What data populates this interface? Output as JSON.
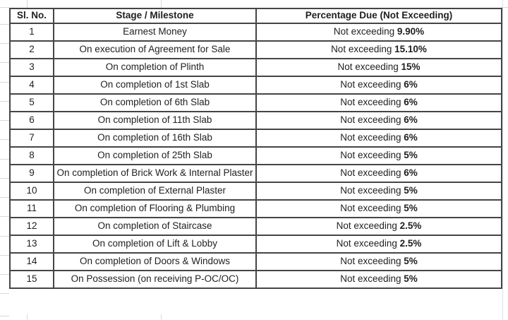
{
  "table": {
    "headers": {
      "serial": "Sl. No.",
      "stage": "Stage / Milestone",
      "percentage": "Percentage Due (Not Exceeding)"
    },
    "prefix_label": "Not exceeding ",
    "rows": [
      {
        "no": "1",
        "stage": "Earnest Money",
        "pct": "9.90%"
      },
      {
        "no": "2",
        "stage": "On execution of Agreement for Sale",
        "pct": "15.10%"
      },
      {
        "no": "3",
        "stage": "On completion of Plinth",
        "pct": "15%"
      },
      {
        "no": "4",
        "stage": "On completion of 1st Slab",
        "pct": "6%"
      },
      {
        "no": "5",
        "stage": "On completion of 6th Slab",
        "pct": "6%"
      },
      {
        "no": "6",
        "stage": "On completion of 11th Slab",
        "pct": "6%"
      },
      {
        "no": "7",
        "stage": "On completion of 16th Slab",
        "pct": "6%"
      },
      {
        "no": "8",
        "stage": "On completion of 25th Slab",
        "pct": "5%"
      },
      {
        "no": "9",
        "stage": "On completion of Brick Work & Internal Plaster",
        "pct": "6%"
      },
      {
        "no": "10",
        "stage": "On completion of External Plaster",
        "pct": "5%"
      },
      {
        "no": "11",
        "stage": "On completion of Flooring & Plumbing",
        "pct": "5%"
      },
      {
        "no": "12",
        "stage": "On completion of Staircase",
        "pct": "2.5%"
      },
      {
        "no": "13",
        "stage": "On completion of Lift & Lobby",
        "pct": "2.5%"
      },
      {
        "no": "14",
        "stage": "On completion of Doors & Windows",
        "pct": "5%"
      },
      {
        "no": "15",
        "stage": "On Possession (on receiving P-OC/OC)",
        "pct": "5%"
      }
    ]
  },
  "colors": {
    "table_border": "#454545",
    "text": "#1f1f1f",
    "background": "#ffffff",
    "gridline": "#d9d9d9"
  }
}
